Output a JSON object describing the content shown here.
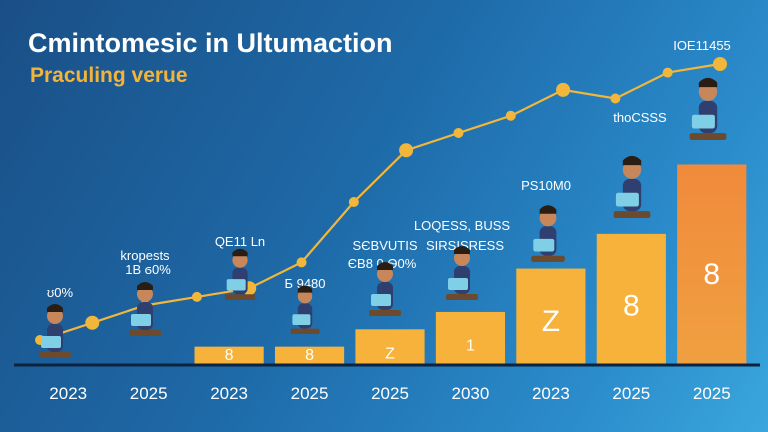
{
  "title": "Cmintomesic in Ultumaction",
  "subtitle": "Praculing verue",
  "colors": {
    "background_start": "#1a4f86",
    "background_end": "#3aa6dc",
    "bar_yellow": "#f6b23a",
    "bar_orange": "#f08a3c",
    "trend_line": "#f2b73a",
    "title": "#ffffff",
    "subtitle": "#f3b43b",
    "baseline": "#0d2340"
  },
  "chart_data": {
    "type": "bar",
    "categories": [
      "2023",
      "2025",
      "2023",
      "2025",
      "2025",
      "2030",
      "2023",
      "2025",
      "2025"
    ],
    "values": [
      0,
      0,
      2,
      2,
      4,
      6,
      11,
      15,
      23
    ],
    "bar_labels": [
      "",
      "",
      "8",
      "8",
      "Z",
      "1",
      "Z",
      "8",
      "8"
    ],
    "trend_line": {
      "values": [
        8,
        10,
        12,
        13,
        14,
        17,
        24,
        30,
        32,
        34,
        37,
        36,
        39,
        40
      ]
    },
    "annotations": [
      {
        "text": "ʊ0%",
        "category_index": 0
      },
      {
        "text": "kropests",
        "category_index": 1
      },
      {
        "text": "1B ϭ0%",
        "category_index": 1
      },
      {
        "text": "QE11 Ln",
        "category_index": 2
      },
      {
        "text": "Б 9480",
        "category_index": 3
      },
      {
        "text": "SЄBVUTIS",
        "category_index": 4
      },
      {
        "text": "ЄB8 0 Ѳ0%",
        "category_index": 4
      },
      {
        "text": "LOQESS, BUSS",
        "category_index": 5
      },
      {
        "text": "SIRSISRESS",
        "category_index": 5
      },
      {
        "text": "PS10M0",
        "category_index": 6
      },
      {
        "text": "thoCSSS",
        "category_index": 7
      },
      {
        "text": "IOE11455",
        "category_index": 8
      }
    ],
    "ylim": [
      0,
      45
    ],
    "xlabel": "",
    "ylabel": "",
    "grid": false,
    "legend": "none",
    "illustrations": [
      "person-sitting-with-laptop-icon",
      "person-at-desk-icon",
      "person-at-desk-icon",
      "person-with-laptop-icon",
      "person-lounging-with-laptop-icon",
      "person-sitting-with-laptop-icon",
      "person-in-chair-icon",
      "person-on-stool-with-laptop-icon",
      "person-walking-up-icon"
    ]
  }
}
